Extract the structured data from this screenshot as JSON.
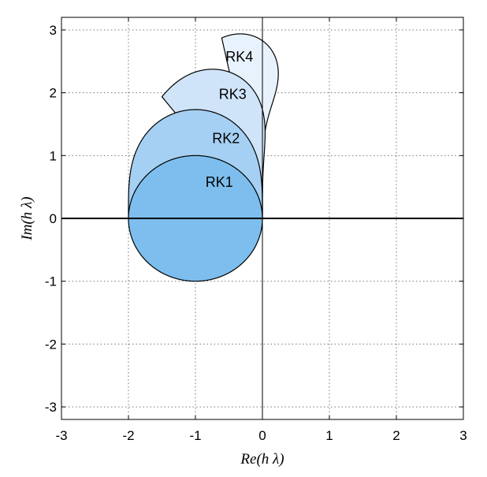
{
  "chart_data": {
    "type": "area",
    "title": "",
    "xlabel": "Re(h λ)",
    "ylabel": "Im(h λ)",
    "xlim": [
      -3,
      3
    ],
    "ylim": [
      -3.2,
      3.2
    ],
    "x_ticks": [
      "-3",
      "-2",
      "-1",
      "0",
      "1",
      "2",
      "3"
    ],
    "y_ticks": [
      "3",
      "2",
      "1",
      "0",
      "-1",
      "-2",
      "-3"
    ],
    "grid": true,
    "series": [
      {
        "name": "RK4",
        "order": 4,
        "color": "#e8f2fc",
        "label_at": [
          -0.55,
          2.5
        ]
      },
      {
        "name": "RK3",
        "order": 3,
        "color": "#cfe4f8",
        "label_at": [
          -0.65,
          1.9
        ]
      },
      {
        "name": "RK2",
        "order": 2,
        "color": "#a6d0f3",
        "label_at": [
          -0.75,
          1.2
        ]
      },
      {
        "name": "RK1",
        "order": 1,
        "color": "#7dbeee",
        "label_at": [
          -0.85,
          0.5
        ]
      }
    ],
    "lines": [
      {
        "axis": "x",
        "value": 0,
        "width": 2
      },
      {
        "axis": "y",
        "value": 0,
        "width": 1
      }
    ]
  }
}
